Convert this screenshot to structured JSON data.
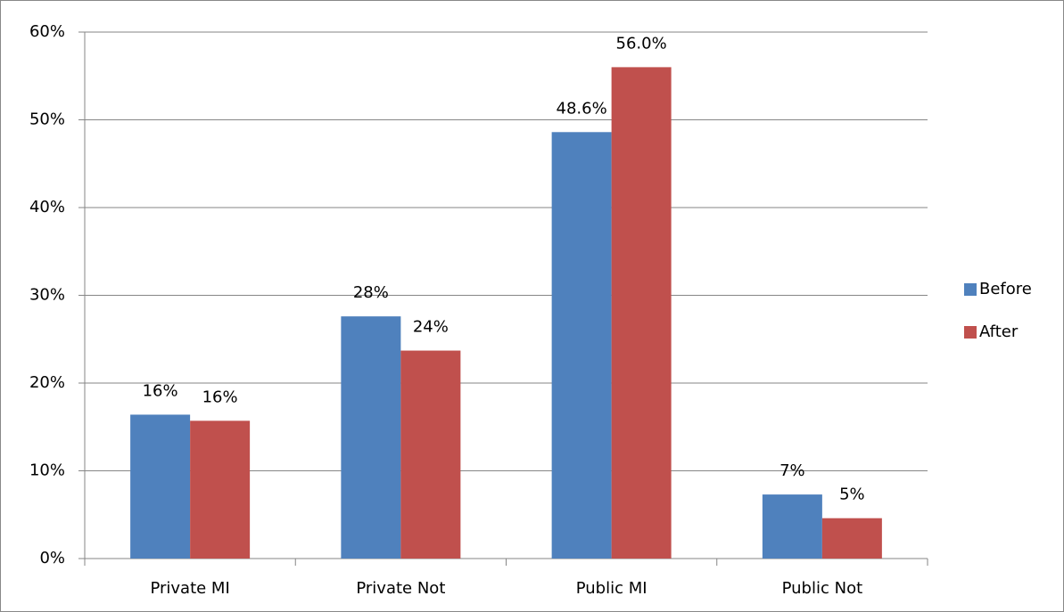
{
  "chart_data": {
    "type": "bar",
    "categories": [
      "Private MI",
      "Private Not",
      "Public MI",
      "Public Not"
    ],
    "series": [
      {
        "name": "Before",
        "color": "#4f81bd",
        "values": [
          16.4,
          27.6,
          48.6,
          7.3
        ],
        "value_labels": [
          "16%",
          "28%",
          "48.6%",
          "7%"
        ]
      },
      {
        "name": "After",
        "color": "#c0504d",
        "values": [
          15.7,
          23.7,
          56.0,
          4.6
        ],
        "value_labels": [
          "16%",
          "24%",
          "56.0%",
          "5%"
        ]
      }
    ],
    "ylim": [
      0,
      60
    ],
    "yticks": [
      {
        "value": 0,
        "label": "0%"
      },
      {
        "value": 10,
        "label": "10%"
      },
      {
        "value": 20,
        "label": "20%"
      },
      {
        "value": 30,
        "label": "30%"
      },
      {
        "value": 40,
        "label": "40%"
      },
      {
        "value": 50,
        "label": "50%"
      },
      {
        "value": 60,
        "label": "60%"
      }
    ],
    "grid": true,
    "legend": "right"
  }
}
